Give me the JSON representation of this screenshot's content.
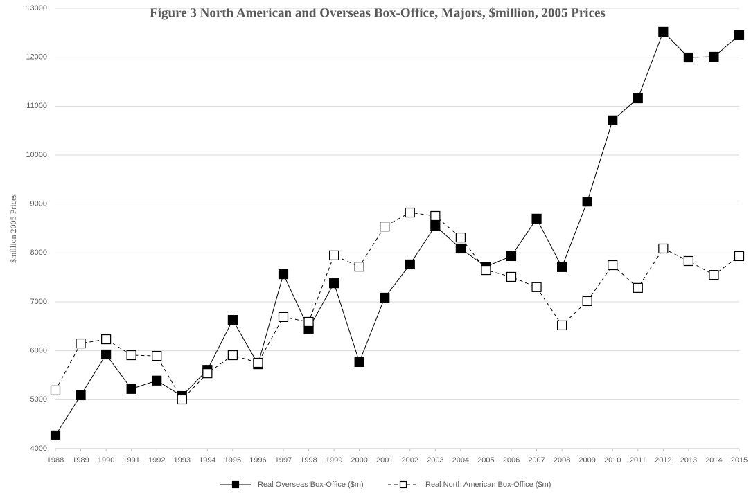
{
  "chart_data": {
    "type": "line",
    "title": "Figure 3 North American  and Overseas Box-Office, Majors, $million, 2005 Prices",
    "y_label": "$million 2005 Prices",
    "x": [
      1988,
      1989,
      1990,
      1991,
      1992,
      1993,
      1994,
      1995,
      1996,
      1997,
      1998,
      1999,
      2000,
      2001,
      2002,
      2003,
      2004,
      2005,
      2006,
      2007,
      2008,
      2009,
      2010,
      2011,
      2012,
      2013,
      2014,
      2015
    ],
    "xlim": [
      1988,
      2015
    ],
    "xticks": [
      1988,
      1989,
      1990,
      1991,
      1992,
      1993,
      1994,
      1995,
      1996,
      1997,
      1998,
      1999,
      2000,
      2001,
      2002,
      2003,
      2004,
      2005,
      2006,
      2007,
      2008,
      2009,
      2010,
      2011,
      2012,
      2013,
      2014,
      2015
    ],
    "ylim": [
      4000,
      13000
    ],
    "yticks": [
      4000,
      5000,
      6000,
      7000,
      8000,
      9000,
      10000,
      11000,
      12000,
      13000
    ],
    "grid": true,
    "legend": "bottom",
    "series": [
      {
        "name": "Real Overseas Box-Office ($m)",
        "color": "#000000",
        "line_style": "solid",
        "marker": "filled-square",
        "values": [
          4270,
          5090,
          5925,
          5220,
          5390,
          5075,
          5610,
          6630,
          5725,
          7565,
          6450,
          7380,
          5770,
          7085,
          7765,
          8555,
          8090,
          7720,
          7935,
          8700,
          7710,
          9050,
          10710,
          11160,
          12520,
          11995,
          12010,
          12450
        ]
      },
      {
        "name": "Real North American Box-Office ($m)",
        "color": "#000000",
        "line_style": "dashed",
        "marker": "open-square",
        "values": [
          5190,
          6150,
          6235,
          5910,
          5895,
          5005,
          5540,
          5910,
          5755,
          6690,
          6590,
          7950,
          7720,
          8540,
          8825,
          8755,
          8315,
          7650,
          7510,
          7300,
          6520,
          7015,
          7750,
          7285,
          8090,
          7835,
          7550,
          7935
        ]
      }
    ]
  }
}
